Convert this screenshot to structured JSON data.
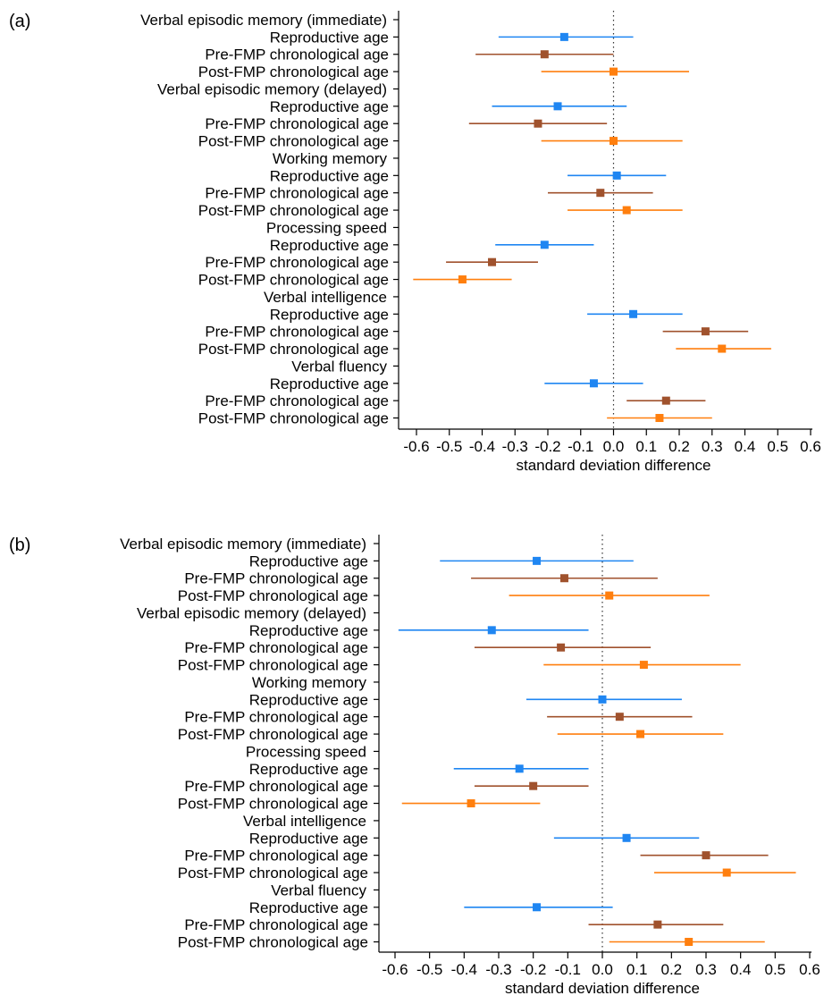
{
  "colors": {
    "Reproductive age": "#1f86f2",
    "Pre-FMP chronological age": "#a0522d",
    "Post-FMP chronological age": "#ff7f0e"
  },
  "chart_data": [
    {
      "type": "forest",
      "panel_label": "(a)",
      "xlabel": "standard deviation difference",
      "xlim": [
        -0.6,
        0.6
      ],
      "xticks": [
        "-0.6",
        "-0.5",
        "-0.4",
        "-0.3",
        "-0.2",
        "-0.1",
        "0.0",
        "0.1",
        "0.2",
        "0.3",
        "0.4",
        "0.5",
        "0.6"
      ],
      "reference_line": 0,
      "groups": [
        {
          "name": "Verbal episodic memory (immediate)",
          "rows": [
            {
              "label": "Reproductive age",
              "estimate": -0.15,
              "lower": -0.35,
              "upper": 0.06
            },
            {
              "label": "Pre-FMP chronological age",
              "estimate": -0.21,
              "lower": -0.42,
              "upper": 0.0
            },
            {
              "label": "Post-FMP chronological age",
              "estimate": 0.0,
              "lower": -0.22,
              "upper": 0.23
            }
          ]
        },
        {
          "name": "Verbal episodic memory (delayed)",
          "rows": [
            {
              "label": "Reproductive age",
              "estimate": -0.17,
              "lower": -0.37,
              "upper": 0.04
            },
            {
              "label": "Pre-FMP chronological age",
              "estimate": -0.23,
              "lower": -0.44,
              "upper": -0.02
            },
            {
              "label": "Post-FMP chronological age",
              "estimate": 0.0,
              "lower": -0.22,
              "upper": 0.21
            }
          ]
        },
        {
          "name": "Working memory",
          "rows": [
            {
              "label": "Reproductive age",
              "estimate": 0.01,
              "lower": -0.14,
              "upper": 0.16
            },
            {
              "label": "Pre-FMP chronological age",
              "estimate": -0.04,
              "lower": -0.2,
              "upper": 0.12
            },
            {
              "label": "Post-FMP chronological age",
              "estimate": 0.04,
              "lower": -0.14,
              "upper": 0.21
            }
          ]
        },
        {
          "name": "Processing speed",
          "rows": [
            {
              "label": "Reproductive age",
              "estimate": -0.21,
              "lower": -0.36,
              "upper": -0.06
            },
            {
              "label": "Pre-FMP chronological age",
              "estimate": -0.37,
              "lower": -0.51,
              "upper": -0.23
            },
            {
              "label": "Post-FMP chronological age",
              "estimate": -0.46,
              "lower": -0.61,
              "upper": -0.31
            }
          ]
        },
        {
          "name": "Verbal intelligence",
          "rows": [
            {
              "label": "Reproductive age",
              "estimate": 0.06,
              "lower": -0.08,
              "upper": 0.21
            },
            {
              "label": "Pre-FMP chronological age",
              "estimate": 0.28,
              "lower": 0.15,
              "upper": 0.41
            },
            {
              "label": "Post-FMP chronological age",
              "estimate": 0.33,
              "lower": 0.19,
              "upper": 0.48
            }
          ]
        },
        {
          "name": "Verbal fluency",
          "rows": [
            {
              "label": "Reproductive age",
              "estimate": -0.06,
              "lower": -0.21,
              "upper": 0.09
            },
            {
              "label": "Pre-FMP chronological age",
              "estimate": 0.16,
              "lower": 0.04,
              "upper": 0.28
            },
            {
              "label": "Post-FMP chronological age",
              "estimate": 0.14,
              "lower": -0.02,
              "upper": 0.3
            }
          ]
        }
      ]
    },
    {
      "type": "forest",
      "panel_label": "(b)",
      "xlabel": "standard deviation difference",
      "xlim": [
        -0.6,
        0.6
      ],
      "xticks": [
        "-0.6",
        "-0.5",
        "-0.4",
        "-0.3",
        "-0.2",
        "-0.1",
        "0.0",
        "0.1",
        "0.2",
        "0.3",
        "0.4",
        "0.5",
        "0.6"
      ],
      "reference_line": 0,
      "groups": [
        {
          "name": "Verbal episodic memory (immediate)",
          "rows": [
            {
              "label": "Reproductive age",
              "estimate": -0.19,
              "lower": -0.47,
              "upper": 0.09
            },
            {
              "label": "Pre-FMP chronological age",
              "estimate": -0.11,
              "lower": -0.38,
              "upper": 0.16
            },
            {
              "label": "Post-FMP chronological age",
              "estimate": 0.02,
              "lower": -0.27,
              "upper": 0.31
            }
          ]
        },
        {
          "name": "Verbal episodic memory (delayed)",
          "rows": [
            {
              "label": "Reproductive age",
              "estimate": -0.32,
              "lower": -0.59,
              "upper": -0.04
            },
            {
              "label": "Pre-FMP chronological age",
              "estimate": -0.12,
              "lower": -0.37,
              "upper": 0.14
            },
            {
              "label": "Post-FMP chronological age",
              "estimate": 0.12,
              "lower": -0.17,
              "upper": 0.4
            }
          ]
        },
        {
          "name": "Working memory",
          "rows": [
            {
              "label": "Reproductive age",
              "estimate": 0.0,
              "lower": -0.22,
              "upper": 0.23
            },
            {
              "label": "Pre-FMP chronological age",
              "estimate": 0.05,
              "lower": -0.16,
              "upper": 0.26
            },
            {
              "label": "Post-FMP chronological age",
              "estimate": 0.11,
              "lower": -0.13,
              "upper": 0.35
            }
          ]
        },
        {
          "name": "Processing speed",
          "rows": [
            {
              "label": "Reproductive age",
              "estimate": -0.24,
              "lower": -0.43,
              "upper": -0.04
            },
            {
              "label": "Pre-FMP chronological age",
              "estimate": -0.2,
              "lower": -0.37,
              "upper": -0.04
            },
            {
              "label": "Post-FMP chronological age",
              "estimate": -0.38,
              "lower": -0.58,
              "upper": -0.18
            }
          ]
        },
        {
          "name": "Verbal intelligence",
          "rows": [
            {
              "label": "Reproductive age",
              "estimate": 0.07,
              "lower": -0.14,
              "upper": 0.28
            },
            {
              "label": "Pre-FMP chronological age",
              "estimate": 0.3,
              "lower": 0.11,
              "upper": 0.48
            },
            {
              "label": "Post-FMP chronological age",
              "estimate": 0.36,
              "lower": 0.15,
              "upper": 0.56
            }
          ]
        },
        {
          "name": "Verbal fluency",
          "rows": [
            {
              "label": "Reproductive age",
              "estimate": -0.19,
              "lower": -0.4,
              "upper": 0.03
            },
            {
              "label": "Pre-FMP chronological age",
              "estimate": 0.16,
              "lower": -0.04,
              "upper": 0.35
            },
            {
              "label": "Post-FMP chronological age",
              "estimate": 0.25,
              "lower": 0.02,
              "upper": 0.47
            }
          ]
        }
      ]
    }
  ]
}
